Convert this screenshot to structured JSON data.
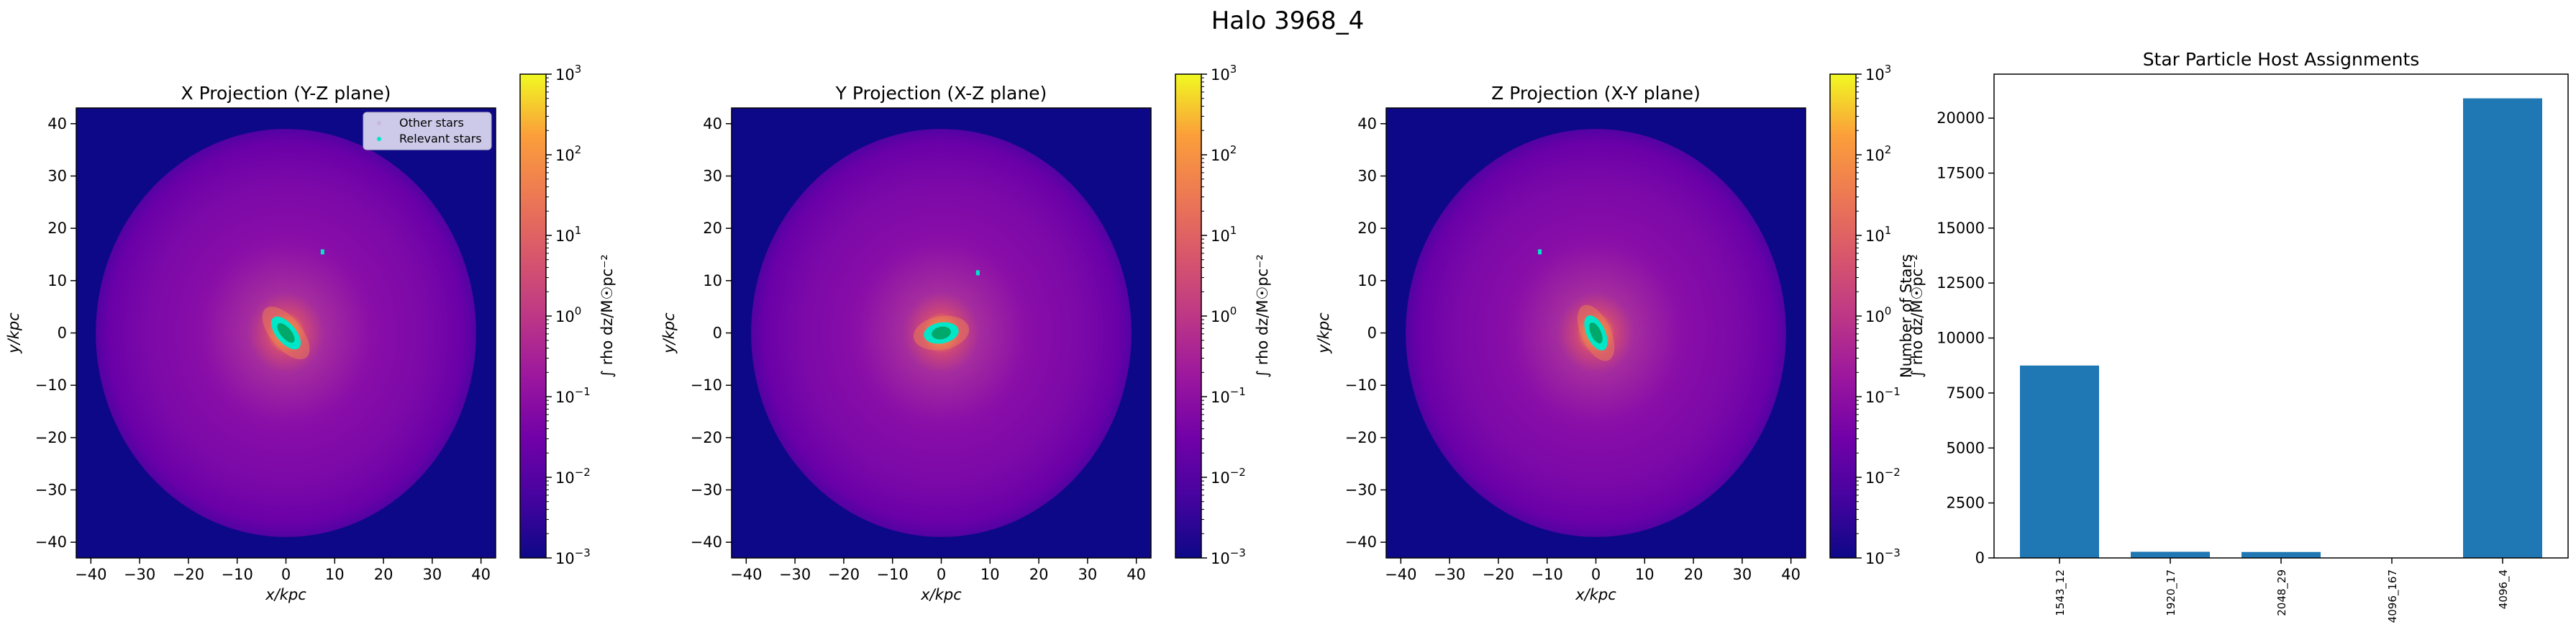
{
  "figure": {
    "suptitle": "Halo 3968_4"
  },
  "colors": {
    "bar": "#1f77b4",
    "other_stars": "#c9b8d8",
    "relevant_stars": "#00e6c8",
    "relevant_core": "#00a86b",
    "background": "#0d0887",
    "legend_bg": "#d8d4ee",
    "halo_stops": [
      "#0d0887",
      "#3e049c",
      "#6a00a8",
      "#8f0da4",
      "#b12a90",
      "#cc4778",
      "#e16462",
      "#f2844b",
      "#fca636"
    ]
  },
  "chart_data": [
    {
      "type": "heatmap",
      "title": "X Projection (Y-Z plane)",
      "xlabel": "x/kpc",
      "ylabel": "y/kpc",
      "xlim": [
        -43,
        43
      ],
      "ylim": [
        -43,
        43
      ],
      "xticks": [
        -40,
        -30,
        -20,
        -10,
        0,
        10,
        20,
        30,
        40
      ],
      "yticks": [
        -40,
        -30,
        -20,
        -10,
        0,
        10,
        20,
        30,
        40
      ],
      "halo_radius": 39,
      "core": {
        "x": 0,
        "y": 0,
        "rx": 2.0,
        "ry": 3.8,
        "angle": -40
      },
      "satellite": {
        "x": 7.5,
        "y": 15.5
      },
      "legend": {
        "position": "upper right",
        "entries": [
          "Other stars",
          "Relevant stars"
        ]
      },
      "colorbar": {
        "label": "∫ rho dz/M☉pc⁻²",
        "scale": "log",
        "range": [
          0.001,
          1000
        ],
        "ticks": [
          {
            "base": "10",
            "exp": "3",
            "value": 1000
          },
          {
            "base": "10",
            "exp": "2",
            "value": 100
          },
          {
            "base": "10",
            "exp": "1",
            "value": 10
          },
          {
            "base": "10",
            "exp": "0",
            "value": 1
          },
          {
            "base": "10",
            "exp": "−1",
            "value": 0.1
          },
          {
            "base": "10",
            "exp": "−2",
            "value": 0.01
          },
          {
            "base": "10",
            "exp": "−3",
            "value": 0.001
          }
        ]
      }
    },
    {
      "type": "heatmap",
      "title": "Y Projection (X-Z plane)",
      "xlabel": "x/kpc",
      "ylabel": "y/kpc",
      "xlim": [
        -43,
        43
      ],
      "ylim": [
        -43,
        43
      ],
      "xticks": [
        -40,
        -30,
        -20,
        -10,
        0,
        10,
        20,
        30,
        40
      ],
      "yticks": [
        -40,
        -30,
        -20,
        -10,
        0,
        10,
        20,
        30,
        40
      ],
      "halo_radius": 39,
      "core": {
        "x": 0,
        "y": 0,
        "rx": 3.6,
        "ry": 2.0,
        "angle": -10
      },
      "satellite": {
        "x": 7.5,
        "y": 11.5
      },
      "colorbar": {
        "label": "∫ rho dz/M☉pc⁻²",
        "scale": "log",
        "range": [
          0.001,
          1000
        ],
        "ticks": [
          {
            "base": "10",
            "exp": "3",
            "value": 1000
          },
          {
            "base": "10",
            "exp": "2",
            "value": 100
          },
          {
            "base": "10",
            "exp": "1",
            "value": 10
          },
          {
            "base": "10",
            "exp": "0",
            "value": 1
          },
          {
            "base": "10",
            "exp": "−1",
            "value": 0.1
          },
          {
            "base": "10",
            "exp": "−2",
            "value": 0.01
          },
          {
            "base": "10",
            "exp": "−3",
            "value": 0.001
          }
        ]
      }
    },
    {
      "type": "heatmap",
      "title": "Z Projection (X-Y plane)",
      "xlabel": "x/kpc",
      "ylabel": "y/kpc",
      "xlim": [
        -43,
        43
      ],
      "ylim": [
        -43,
        43
      ],
      "xticks": [
        -40,
        -30,
        -20,
        -10,
        0,
        10,
        20,
        30,
        40
      ],
      "yticks": [
        -40,
        -30,
        -20,
        -10,
        0,
        10,
        20,
        30,
        40
      ],
      "halo_radius": 39,
      "core": {
        "x": 0,
        "y": 0,
        "rx": 1.9,
        "ry": 3.6,
        "angle": -25
      },
      "satellite": {
        "x": -11.5,
        "y": 15.5
      },
      "colorbar": {
        "label": "∫ rho dz/M☉pc⁻²",
        "scale": "log",
        "range": [
          0.001,
          1000
        ],
        "ticks": [
          {
            "base": "10",
            "exp": "3",
            "value": 1000
          },
          {
            "base": "10",
            "exp": "2",
            "value": 100
          },
          {
            "base": "10",
            "exp": "1",
            "value": 10
          },
          {
            "base": "10",
            "exp": "0",
            "value": 1
          },
          {
            "base": "10",
            "exp": "−1",
            "value": 0.1
          },
          {
            "base": "10",
            "exp": "−2",
            "value": 0.01
          },
          {
            "base": "10",
            "exp": "−3",
            "value": 0.001
          }
        ]
      }
    },
    {
      "type": "bar",
      "title": "Star Particle Host Assignments",
      "xlabel": "",
      "ylabel": "Number of Stars",
      "categories": [
        "1543_12",
        "1920_17",
        "2048_29",
        "4096_167",
        "4096_4"
      ],
      "values": [
        8750,
        280,
        270,
        0,
        20900
      ],
      "ylim": [
        0,
        22000
      ],
      "yticks": [
        0,
        2500,
        5000,
        7500,
        10000,
        12500,
        15000,
        17500,
        20000
      ]
    }
  ]
}
